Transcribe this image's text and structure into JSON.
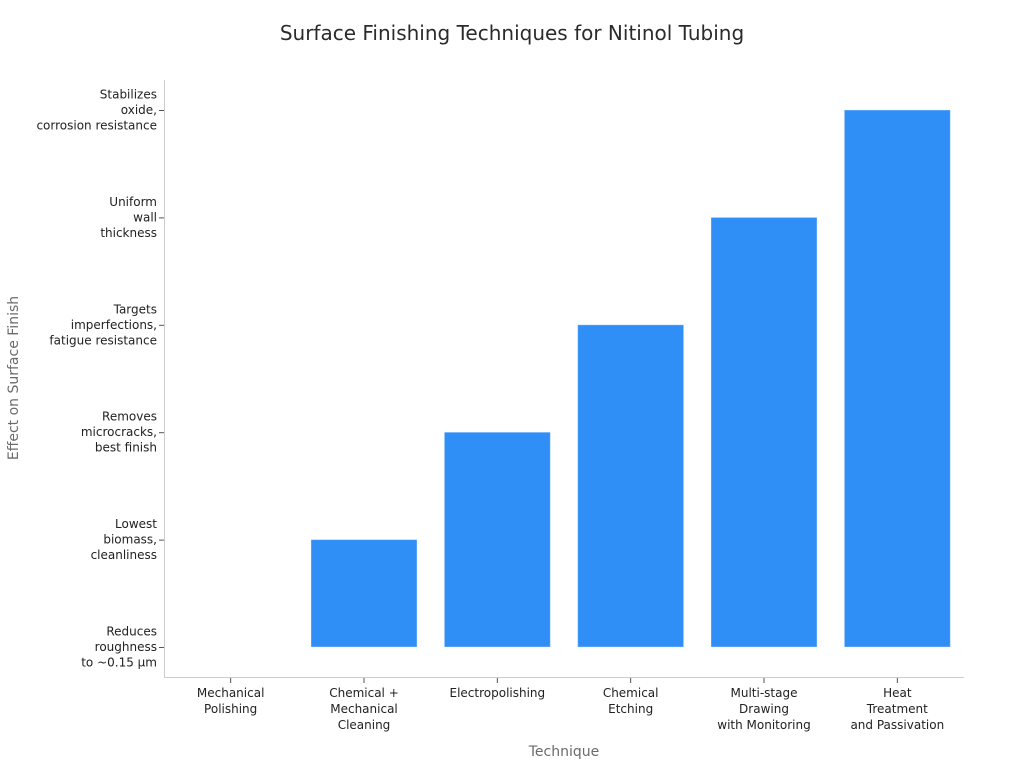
{
  "chart_data": {
    "type": "bar",
    "title": "Surface Finishing Techniques for Nitinol Tubing",
    "xlabel": "Technique",
    "ylabel": "Effect on Surface Finish",
    "categories": [
      "Mechanical\nPolishing",
      "Chemical +\nMechanical\nCleaning",
      "Electropolishing",
      "Chemical\nEtching",
      "Multi-stage\nDrawing\nwith Monitoring",
      "Heat\nTreatment\nand Passivation"
    ],
    "y_categories": [
      "Reduces\nroughness\nto ~0.15 µm",
      "Lowest\nbiomass,\ncleanliness",
      "Removes\nmicrocracks,\nbest finish",
      "Targets\nimperfections,\nfatigue resistance",
      "Uniform\nwall\nthickness",
      "Stabilizes\noxide,\ncorrosion resistance"
    ],
    "values": [
      0,
      1,
      2,
      3,
      4,
      5
    ],
    "bar_color": "#2f8ff7",
    "grid": false
  }
}
